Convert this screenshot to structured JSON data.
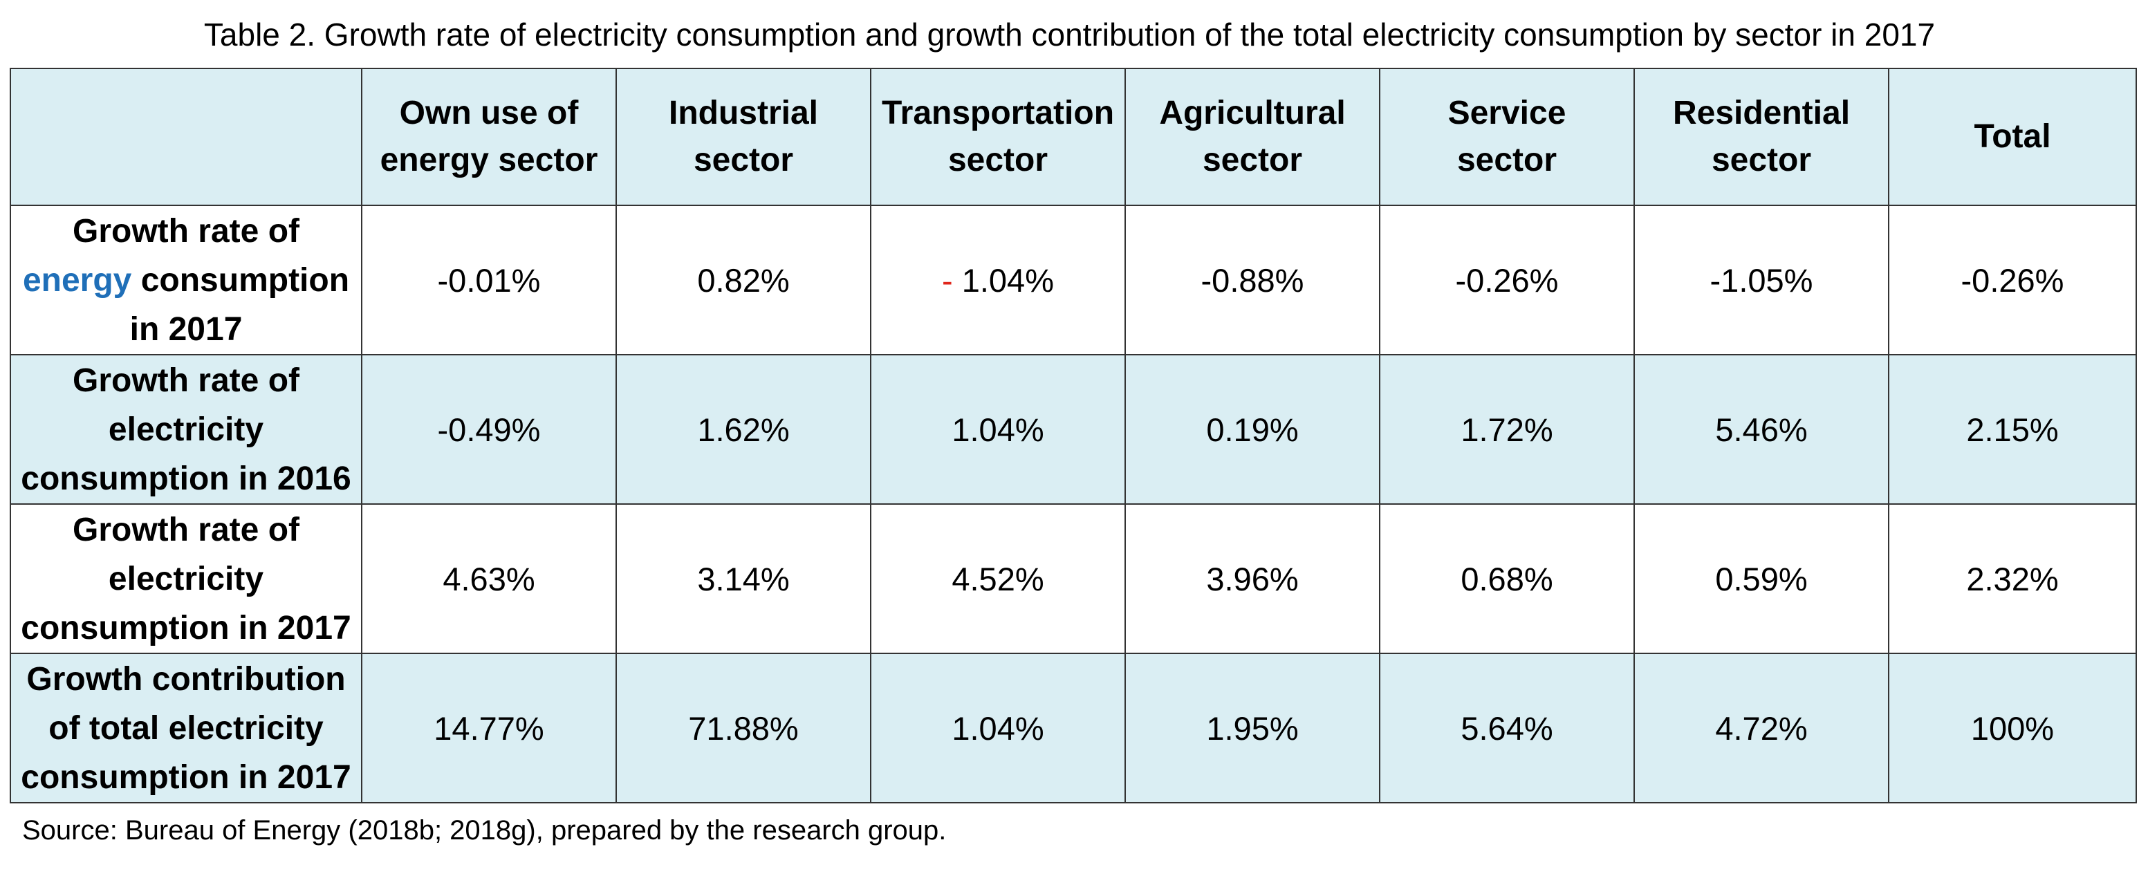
{
  "caption": "Table 2. Growth rate of electricity consumption and growth contribution of the total electricity consumption by sector in 2017",
  "table": {
    "header": {
      "corner": "",
      "columns": [
        {
          "line1": "Own use of",
          "line2": "energy sector"
        },
        {
          "line1": "Industrial",
          "line2": "sector"
        },
        {
          "line1": "Transportation",
          "line2": "sector"
        },
        {
          "line1": "Agricultural",
          "line2": "sector"
        },
        {
          "line1": "Service",
          "line2": "sector"
        },
        {
          "line1": "Residential",
          "line2": "sector"
        },
        {
          "line1": "Total",
          "line2": ""
        }
      ]
    },
    "rows": [
      {
        "label": {
          "line1": "Growth rate of",
          "line2_highlight": "energy",
          "line2_rest": " consumption",
          "line3": "in 2017"
        },
        "values": [
          "-0.01%",
          "0.82%",
          "1.04%",
          "-0.88%",
          "-0.26%",
          "-1.05%",
          "-0.26%"
        ],
        "transport_sign": "-"
      },
      {
        "label": {
          "line1": "Growth rate of",
          "line2": "electricity",
          "line3": "consumption in 2016"
        },
        "values": [
          "-0.49%",
          "1.62%",
          "1.04%",
          "0.19%",
          "1.72%",
          "5.46%",
          "2.15%"
        ]
      },
      {
        "label": {
          "line1": "Growth rate of",
          "line2": "electricity",
          "line3": "consumption in 2017"
        },
        "values": [
          "4.63%",
          "3.14%",
          "4.52%",
          "3.96%",
          "0.68%",
          "0.59%",
          "2.32%"
        ]
      },
      {
        "label": {
          "line1": "Growth contribution",
          "line2": "of total electricity",
          "line3": "consumption in 2017"
        },
        "values": [
          "14.77%",
          "71.88%",
          "1.04%",
          "1.95%",
          "5.64%",
          "4.72%",
          "100%"
        ]
      }
    ]
  },
  "source": "Source: Bureau of Energy (2018b; 2018g), prepared by the research group.",
  "colors": {
    "header_fill": "#daeef3",
    "highlight_word": "#1f6fb8",
    "sign_mark": "#e0261b",
    "border": "#333333"
  }
}
